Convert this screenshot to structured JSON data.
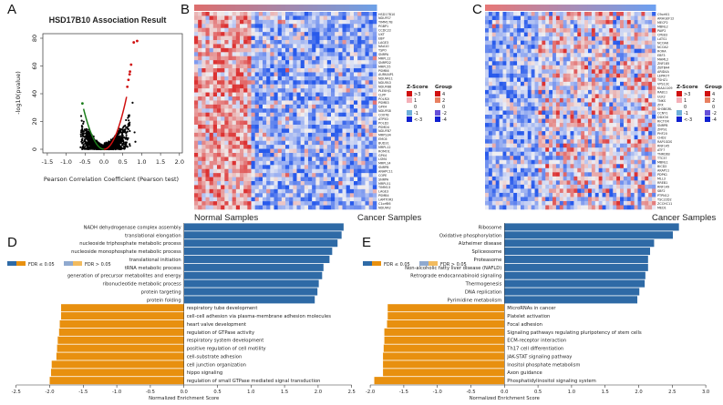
{
  "panels": {
    "a": "A",
    "b": "B",
    "c": "C",
    "d": "D",
    "e": "E"
  },
  "heatmap_b": {
    "normal_label": "Normal Samples",
    "cancer_label": "Cancer Samples",
    "genes": [
      "HSD17B10",
      "NDUFS7",
      "TIMM17B",
      "PGBP1",
      "CCDC22",
      "UXT",
      "EBP",
      "LAGE3",
      "NAA10",
      "TSPO",
      "SNRPA",
      "MRPL12",
      "SNRPD2",
      "MRPL55",
      "PSMB6",
      "AURKAIP1",
      "NDUFA11",
      "NDUFA3",
      "NDUFB8",
      "PLEKHJ1",
      "CLPP",
      "POLR2I",
      "PSMB3",
      "GPX4",
      "NDUFS8",
      "COX7B",
      "ATP5D",
      "POLD2",
      "PSMD4",
      "NDUFB7",
      "MRPS34",
      "EMC6",
      "BUD31",
      "MRPL12",
      "ROMO1",
      "GPX4",
      "LSM4",
      "MRPL14",
      "SNRPB",
      "ANAPC11",
      "COPE",
      "SNRPA",
      "MRPL51",
      "TIMM13",
      "LAGE3",
      "PSMB4",
      "LAMTOR2",
      "C1orf86",
      "NDUFA2"
    ],
    "zscore_title": "Z-Score",
    "group_title": "Group",
    "zscore_labels": [
      ">3",
      "1",
      "0",
      "-1",
      "<-3"
    ],
    "group_labels": [
      "4",
      "2",
      "0",
      "-2",
      "-4"
    ]
  },
  "heatmap_c": {
    "cancer_label": "Cancer Samples",
    "genes": [
      "C9orf41",
      "ARHGEF12",
      "MECP2",
      "MBNL2",
      "PAIP2",
      "CPEB3",
      "LATS1",
      "NCOA6",
      "NCOA2",
      "RORA",
      "EBF3",
      "MAML2",
      "ZNF185",
      "ZBTB44",
      "ARID4A",
      "LEPROT",
      "TSHZ1",
      "VPS13C",
      "KIAA1109",
      "RAB11",
      "ULK2",
      "TNKS",
      "ZFX",
      "SH3BGRL",
      "CCNY1",
      "DDX3X",
      "RICTOR",
      "SNRPB",
      "ZFP91",
      "PHF20",
      "CHD2",
      "RAP1GDS",
      "RNF145",
      "ATF7",
      "TNRC6B",
      "TTC37",
      "MBNL1",
      "BICD2",
      "AKAP11",
      "PDPK1",
      "MLL3",
      "RREB1",
      "RNF149",
      "SBF2",
      "PTPN12",
      "TSC22D2",
      "ZCCHC11",
      "MED1"
    ],
    "zscore_title": "Z-Score",
    "group_title": "Group",
    "zscore_labels": [
      ">3",
      "1",
      "0",
      "-1",
      "<-3"
    ],
    "group_labels": [
      "4",
      "2",
      "0",
      "-2",
      "-4"
    ]
  },
  "colors": {
    "up": "#2e6aa6",
    "down": "#e8900f",
    "up_light": "#8fa9cf",
    "down_light": "#f2bb5e",
    "red": "#d01010",
    "blue": "#1020d0",
    "green": "#1b7d1b"
  },
  "chart_data": [
    {
      "type": "scatter",
      "title": "HSD17B10 Association Result",
      "xlabel": "Pearson Correlation Coefficient (Pearson test)",
      "ylabel": "-log10(pvalue)",
      "xlim": [
        -1.6,
        2.1
      ],
      "ylim": [
        -3,
        82
      ],
      "xticks": [
        "-1.5",
        "-1.0",
        "-0.5",
        "0.0",
        "0.5",
        "1.0",
        "1.5",
        "2.0"
      ],
      "yticks": [
        "0",
        "20",
        "40",
        "60",
        "80"
      ],
      "highlighted": [
        {
          "x": 0.79,
          "y": 77
        },
        {
          "x": 0.88,
          "y": 78
        },
        {
          "x": 0.72,
          "y": 61
        },
        {
          "x": 0.69,
          "y": 56
        },
        {
          "x": 0.68,
          "y": 54
        },
        {
          "x": 0.65,
          "y": 50
        },
        {
          "x": 0.62,
          "y": 45
        },
        {
          "x": -0.57,
          "y": 33
        }
      ]
    },
    {
      "type": "bar",
      "orientation": "horizontal",
      "xlabel": "Normalized Enrichment Score",
      "xlim": [
        -2.5,
        2.5
      ],
      "xticks": [
        "-2.5",
        "-2.0",
        "-1.5",
        "-1.0",
        "-0.5",
        "0.0",
        "0.5",
        "1.0",
        "1.5",
        "2.0",
        "2.5"
      ],
      "legend": [
        "FDR ≤ 0.05",
        "FDR > 0.05"
      ],
      "categories": [
        "NADH dehydrogenase complex assembly",
        "translational elongation",
        "nucleoside triphosphate metabolic process",
        "nucleoside monophosphate metabolic process",
        "translational initiation",
        "tRNA metabolic process",
        "generation of precursor metabolites and energy",
        "ribonucleotide metabolic process",
        "protein targeting",
        "protein folding",
        "respiratory tube development",
        "cell-cell adhesion via plasma-membrane adhesion molecules",
        "heart valve development",
        "regulation of GTPase activity",
        "respiratory system development",
        "positive regulation of cell motility",
        "cell-substrate adhesion",
        "cell junction organization",
        "hippo signaling",
        "regulation of small GTPase mediated signal transduction"
      ],
      "values": [
        2.38,
        2.35,
        2.29,
        2.21,
        2.17,
        2.08,
        2.06,
        2.01,
        1.99,
        1.95,
        -1.83,
        -1.83,
        -1.85,
        -1.86,
        -1.88,
        -1.89,
        -1.9,
        -1.97,
        -1.98,
        -2.0
      ]
    },
    {
      "type": "bar",
      "orientation": "horizontal",
      "xlabel": "Normalized Enrichment Score",
      "xlim": [
        -2.0,
        3.0
      ],
      "xticks": [
        "-2.0",
        "-1.5",
        "-1.0",
        "-0.5",
        "0.0",
        "0.5",
        "1.0",
        "1.5",
        "2.0",
        "2.5",
        "3.0"
      ],
      "legend": [
        "FDR ≤ 0.05",
        "FDR > 0.05"
      ],
      "categories": [
        "Ribosome",
        "Oxidative phosphorylation",
        "Alzheimer disease",
        "Spliceosome",
        "Proteasome",
        "Non-alcoholic fatty liver disease (NAFLD)",
        "Retrograde endocannabinoid signaling",
        "Thermogenesis",
        "DNA replication",
        "Pyrimidine metabolism",
        "MicroRNAs in cancer",
        "Platelet activation",
        "Focal adhesion",
        "Signaling pathways regulating pluripotency of stem cells",
        "ECM-receptor interaction",
        "Th17 cell differentiation",
        "JAK-STAT signaling pathway",
        "Inositol phosphate metabolism",
        "Axon guidance",
        "Phosphatidylinositol signaling system"
      ],
      "values": [
        2.6,
        2.51,
        2.23,
        2.17,
        2.14,
        2.14,
        2.1,
        2.09,
        2.01,
        1.98,
        -1.74,
        -1.74,
        -1.75,
        -1.79,
        -1.79,
        -1.8,
        -1.81,
        -1.81,
        -1.81,
        -1.94
      ]
    }
  ]
}
